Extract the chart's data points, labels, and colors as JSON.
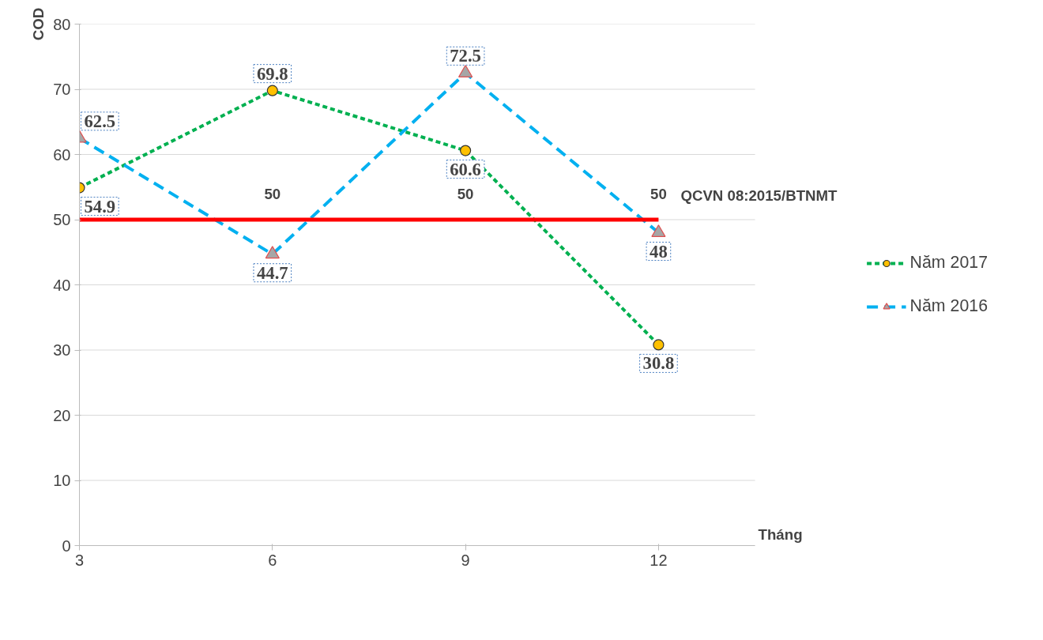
{
  "chart_data": {
    "type": "line",
    "xlabel": "Tháng",
    "ylabel": "COD",
    "x": [
      3,
      6,
      9,
      12
    ],
    "xlim": [
      3,
      13.5
    ],
    "xticks": [
      3,
      6,
      9,
      12
    ],
    "ylim": [
      0,
      80
    ],
    "yticks": [
      0,
      10,
      20,
      30,
      40,
      50,
      60,
      70,
      80
    ],
    "grid": "y",
    "legend": "right",
    "series": [
      {
        "name": "Năm 2017",
        "color": "#00b050",
        "marker": "circle",
        "line_style": "dotted",
        "values": [
          54.9,
          69.8,
          60.6,
          30.8
        ],
        "value_labels": [
          "54.9",
          "69.8",
          "60.6",
          "30.8"
        ]
      },
      {
        "name": "Năm 2016",
        "color": "#00b0f0",
        "marker": "triangle",
        "line_style": "dashed",
        "values": [
          62.5,
          44.7,
          72.5,
          48
        ],
        "value_labels": [
          "62.5",
          "44.7",
          "72.5",
          "48"
        ]
      },
      {
        "name": "QCVN 08:2015/BTNMT",
        "color": "#ff0000",
        "marker": "none",
        "line_style": "solid",
        "values": [
          50,
          50,
          50,
          50
        ],
        "value_labels": [
          null,
          "50",
          "50",
          "50"
        ]
      }
    ]
  }
}
